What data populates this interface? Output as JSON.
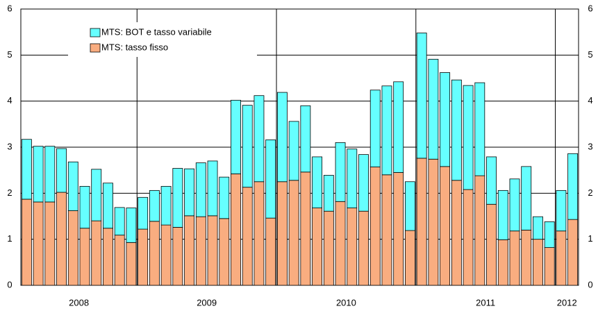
{
  "chart_data": {
    "type": "stacked_bar",
    "categories": [
      null,
      null,
      null,
      null,
      null,
      null,
      null,
      null,
      null,
      null,
      null,
      null,
      null,
      null,
      null,
      null,
      null,
      null,
      null,
      null,
      null,
      null,
      null,
      null,
      null,
      null,
      null,
      null,
      null,
      null,
      null,
      null,
      null,
      null,
      null,
      null,
      null,
      null,
      null,
      null,
      null,
      null,
      null,
      null,
      null,
      null,
      null,
      null
    ],
    "x_group_labels": [
      "2008",
      "2009",
      "2010",
      "2011",
      "2012"
    ],
    "x_group_sizes": [
      10,
      12,
      12,
      12,
      2
    ],
    "series": [
      {
        "name": "MTS: tasso fisso",
        "color": "#F9AD80",
        "values": [
          1.87,
          1.81,
          1.81,
          2.02,
          1.62,
          1.24,
          1.4,
          1.24,
          1.09,
          0.93,
          1.22,
          1.39,
          1.31,
          1.26,
          1.51,
          1.49,
          1.51,
          1.45,
          2.42,
          2.13,
          2.25,
          1.46,
          2.25,
          2.28,
          2.46,
          1.68,
          1.61,
          1.82,
          1.68,
          1.61,
          2.57,
          2.4,
          2.45,
          1.19,
          2.76,
          2.74,
          2.58,
          2.28,
          2.08,
          2.38,
          1.76,
          0.99,
          1.18,
          1.2,
          1.0,
          0.82,
          1.18,
          1.43
        ]
      },
      {
        "name": "MTS: BOT e tasso variabile",
        "color": "#66FFFF",
        "values": [
          1.3,
          1.21,
          1.21,
          0.95,
          1.06,
          0.91,
          1.12,
          0.98,
          0.6,
          0.75,
          0.69,
          0.67,
          0.84,
          1.28,
          1.02,
          1.17,
          1.19,
          0.9,
          1.6,
          1.78,
          1.87,
          1.7,
          1.94,
          1.28,
          1.44,
          1.11,
          0.78,
          1.28,
          1.28,
          1.23,
          1.67,
          1.93,
          1.97,
          1.06,
          2.72,
          2.17,
          2.04,
          2.18,
          2.26,
          2.02,
          1.03,
          1.07,
          1.13,
          1.38,
          0.49,
          0.56,
          0.88,
          1.43
        ]
      }
    ],
    "ylim": [
      0,
      6
    ],
    "yticks": [
      0,
      1,
      2,
      3,
      4,
      5,
      6
    ],
    "y2lim": [
      0,
      6
    ],
    "y2ticks": [
      0,
      1,
      2,
      3,
      4,
      5,
      6
    ],
    "grid": true,
    "legend": "upper left"
  }
}
